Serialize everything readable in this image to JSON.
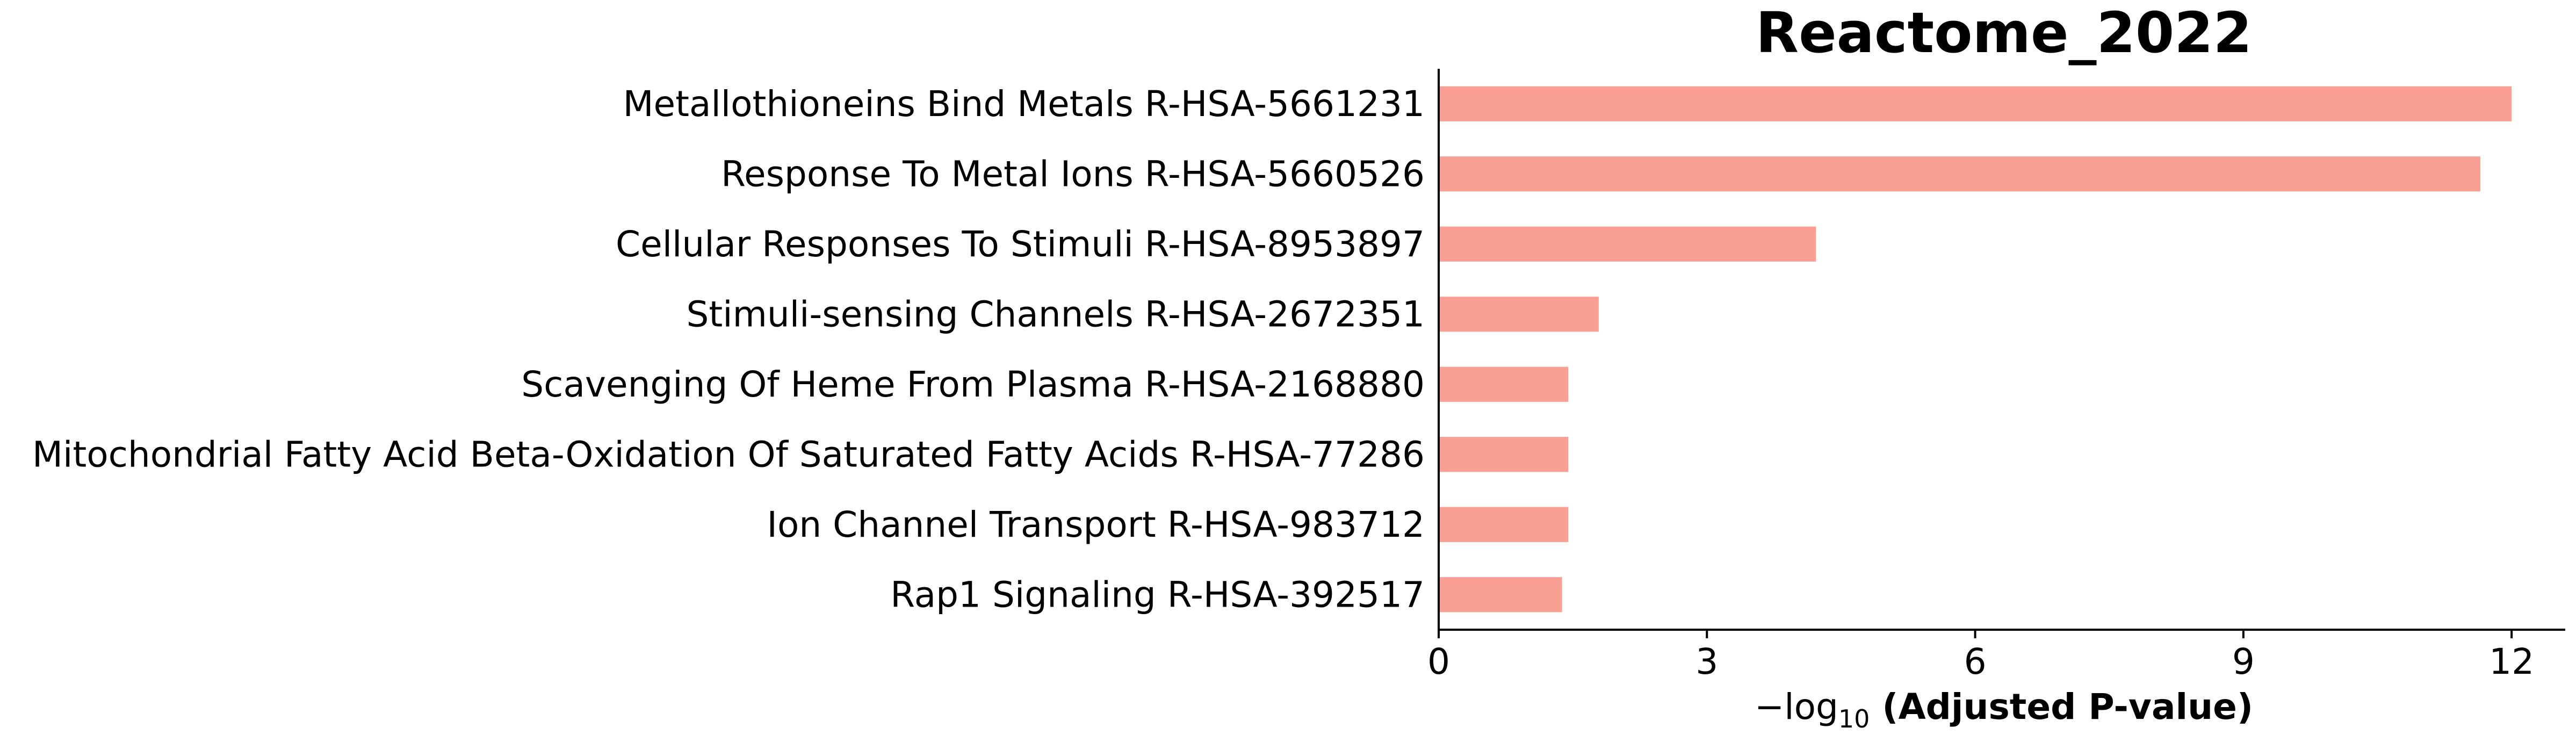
{
  "chart_data": {
    "type": "bar",
    "orientation": "horizontal",
    "title": "Reactome_2022",
    "xlabel": {
      "prefix": "−log",
      "subscript": "10",
      "text": " (Adjusted P-value)"
    },
    "ylabel": "",
    "categories": [
      "Metallothioneins Bind Metals R-HSA-5661231",
      "Response To Metal Ions R-HSA-5660526",
      "Cellular Responses To Stimuli R-HSA-8953897",
      "Stimuli-sensing Channels R-HSA-2672351",
      "Scavenging Of Heme From Plasma R-HSA-2168880",
      "Mitochondrial Fatty Acid Beta-Oxidation Of Saturated Fatty Acids R-HSA-77286",
      "Ion Channel Transport R-HSA-983712",
      "Rap1 Signaling R-HSA-392517"
    ],
    "values": [
      12.0,
      11.65,
      4.22,
      1.79,
      1.45,
      1.45,
      1.45,
      1.38
    ],
    "xlim": [
      0,
      12.6
    ],
    "xticks": [
      0,
      3,
      6,
      9,
      12
    ],
    "bar_color": "#fa9f93",
    "grid": false,
    "legend": "none"
  }
}
